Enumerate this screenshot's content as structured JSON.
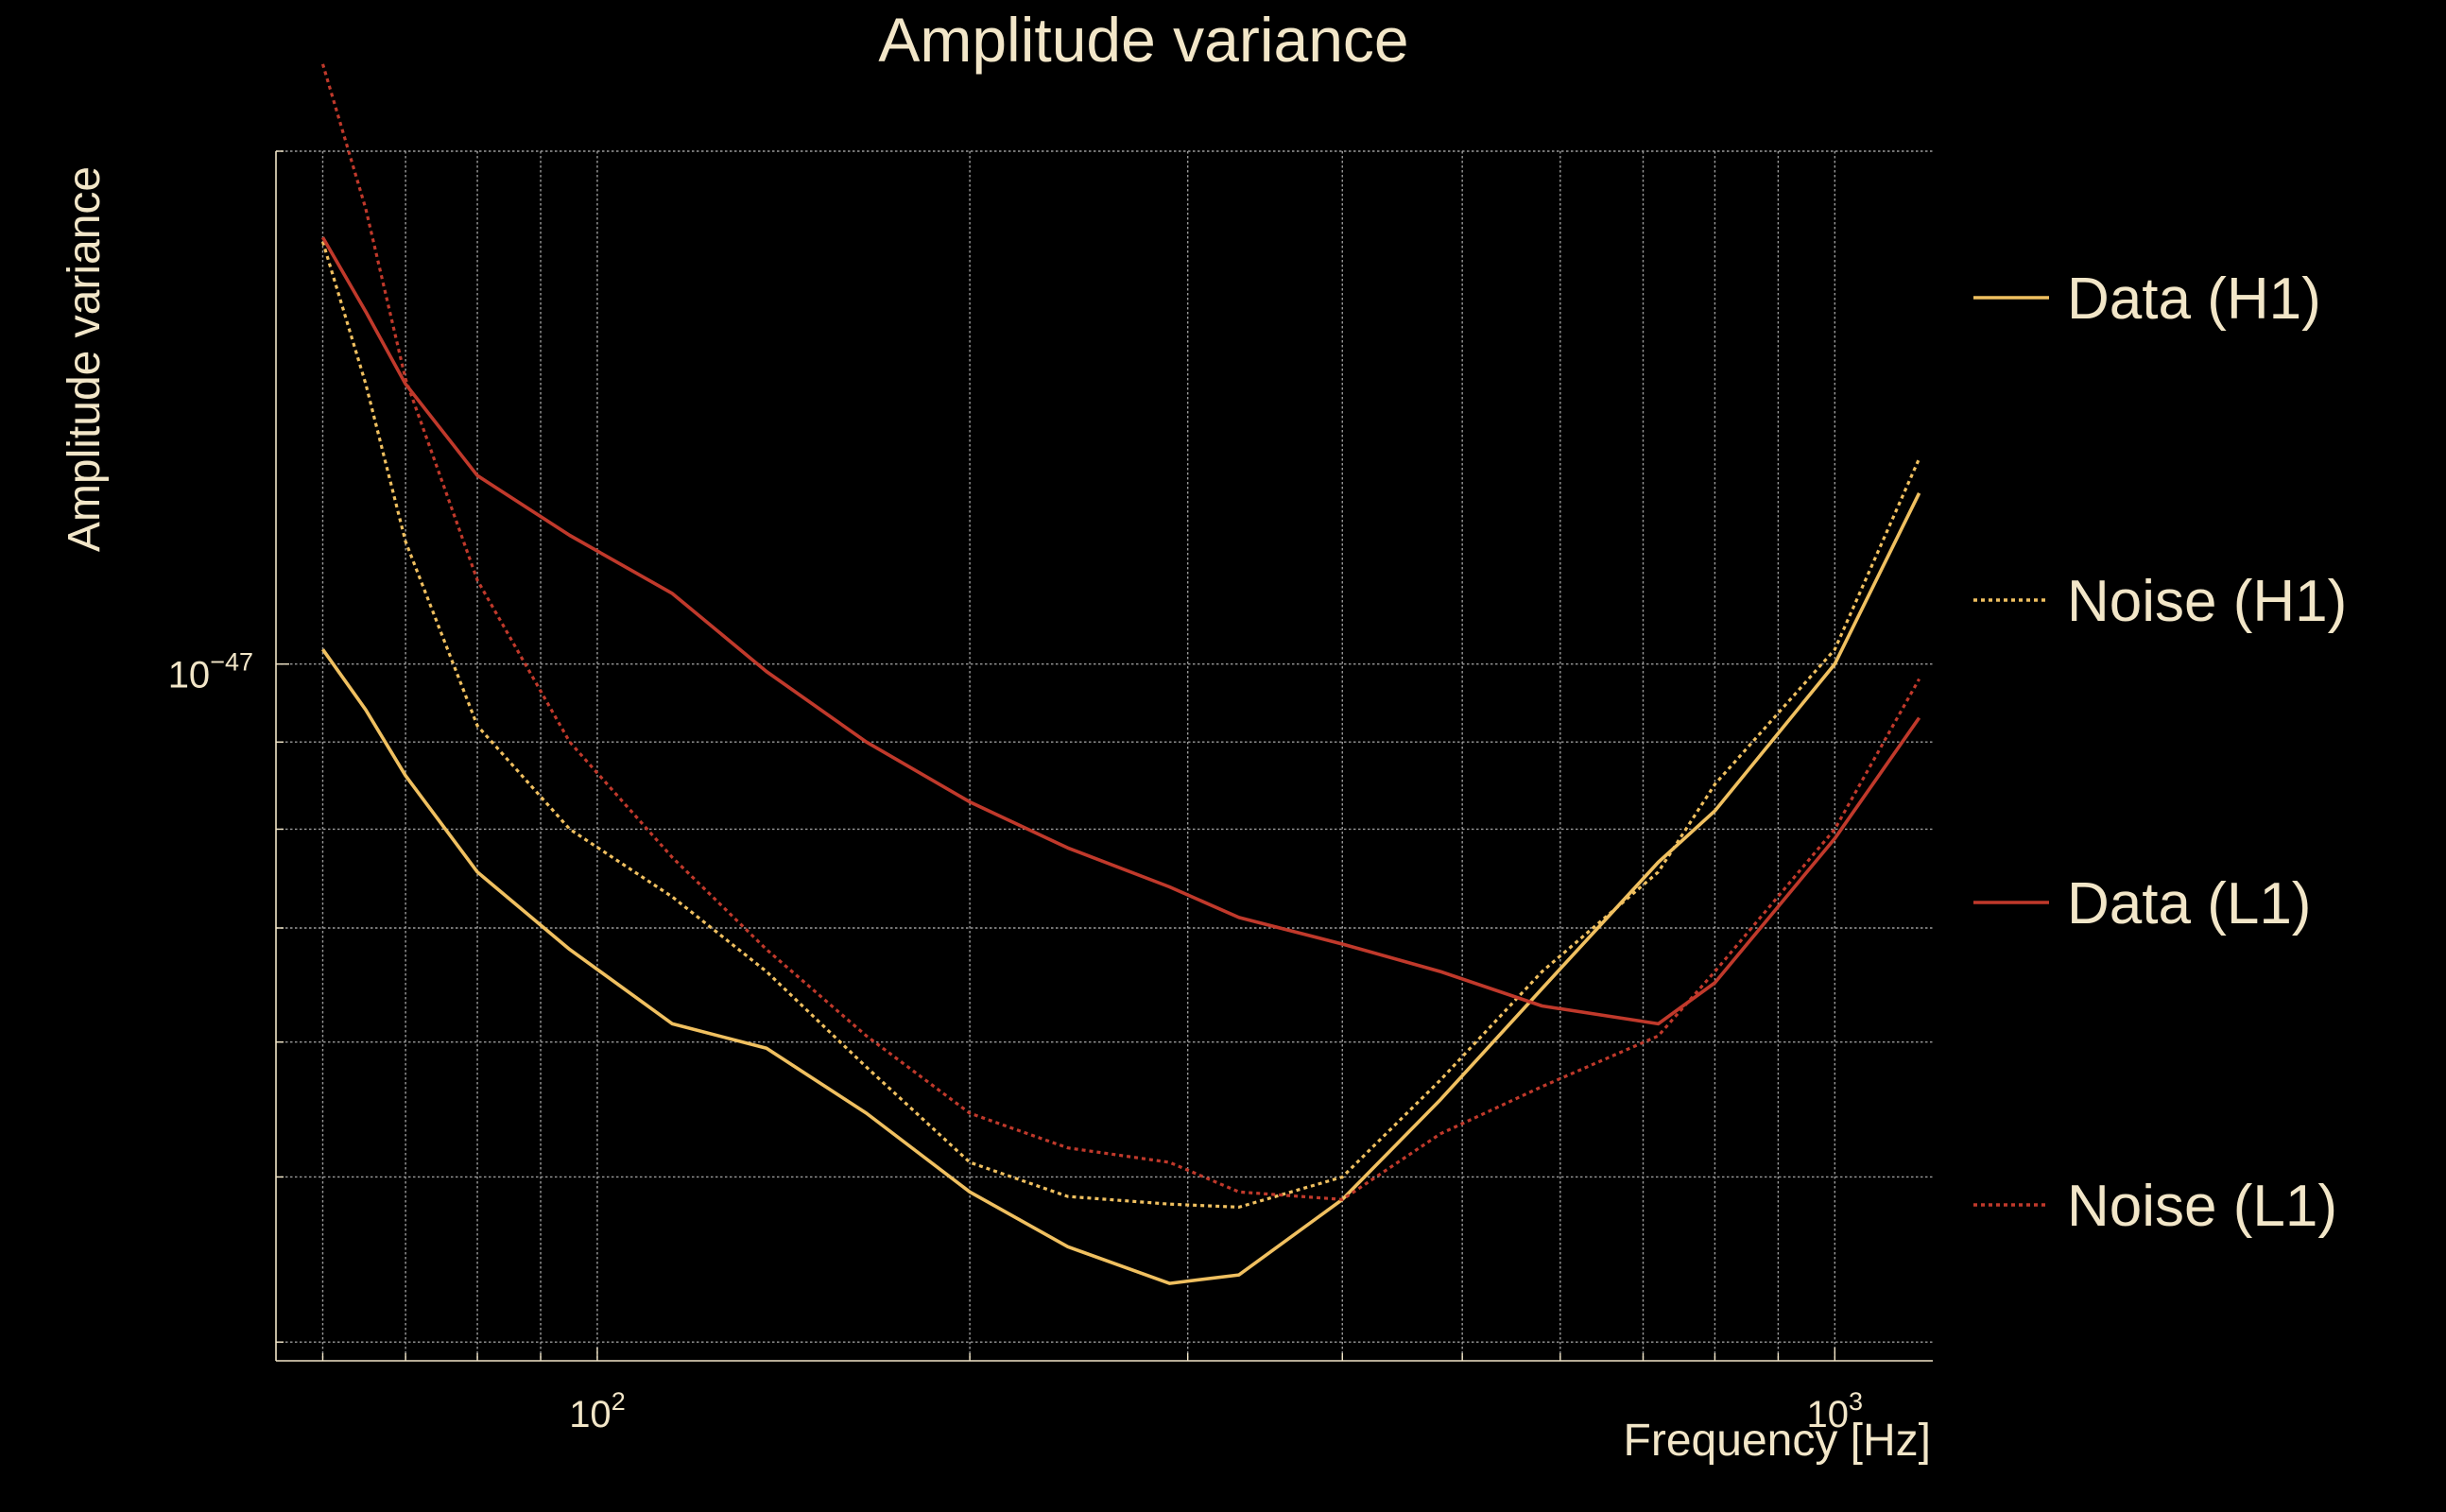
{
  "chart_data": {
    "type": "line",
    "title": "Amplitude variance",
    "xlabel": "Frequency [Hz]",
    "ylabel": "Amplitude variance",
    "xscale": "log",
    "yscale": "log",
    "xlim": [
      55,
      1200
    ],
    "ylim": [
      3.9e-48,
      2e-47
    ],
    "x_tick_labels": [
      {
        "value": 100,
        "base": "10",
        "exp": "2"
      },
      {
        "value": 1000,
        "base": "10",
        "exp": "3"
      }
    ],
    "y_tick_labels": [
      {
        "value": 1e-47,
        "base": "10",
        "exp": "−47"
      }
    ],
    "grid": true,
    "legend_position": "right",
    "x": [
      60,
      65,
      70,
      80,
      95,
      115,
      137,
      165,
      200,
      240,
      290,
      330,
      400,
      480,
      580,
      720,
      800,
      1000,
      1170
    ],
    "series": [
      {
        "name": "Data (H1)",
        "color": "#f0c060",
        "style": "solid",
        "values": [
          1.02e-47,
          9.4e-48,
          8.6e-48,
          7.55e-48,
          6.8e-48,
          6.15e-48,
          5.95e-48,
          5.45e-48,
          4.9e-48,
          4.55e-48,
          4.33e-48,
          4.38e-48,
          4.85e-48,
          5.55e-48,
          6.45e-48,
          7.65e-48,
          8.2e-48,
          1e-47,
          1.26e-47
        ]
      },
      {
        "name": "Noise (H1)",
        "color": "#f0c060",
        "style": "dotted",
        "values": [
          1.77e-47,
          1.46e-47,
          1.18e-47,
          9.2e-48,
          8e-48,
          7.3e-48,
          6.6e-48,
          5.8e-48,
          5.1e-48,
          4.87e-48,
          4.82e-48,
          4.8e-48,
          5e-48,
          5.7e-48,
          6.6e-48,
          7.55e-48,
          8.5e-48,
          1.02e-47,
          1.32e-47
        ]
      },
      {
        "name": "Data (L1)",
        "color": "#c0392b",
        "style": "solid",
        "values": [
          1.78e-47,
          1.61e-47,
          1.46e-47,
          1.29e-47,
          1.19e-47,
          1.1e-47,
          9.9e-48,
          9e-48,
          8.3e-48,
          7.8e-48,
          7.4e-48,
          7.1e-48,
          6.85e-48,
          6.6e-48,
          6.3e-48,
          6.15e-48,
          6.5e-48,
          7.9e-48,
          9.3e-48
        ]
      },
      {
        "name": "Noise (L1)",
        "color": "#c0392b",
        "style": "dotted",
        "values": [
          2.25e-47,
          1.85e-47,
          1.47e-47,
          1.12e-47,
          9e-48,
          7.7e-48,
          6.8e-48,
          6.05e-48,
          5.45e-48,
          5.2e-48,
          5.1e-48,
          4.9e-48,
          4.85e-48,
          5.3e-48,
          5.65e-48,
          6.05e-48,
          6.6e-48,
          8e-48,
          9.8e-48
        ]
      }
    ]
  }
}
